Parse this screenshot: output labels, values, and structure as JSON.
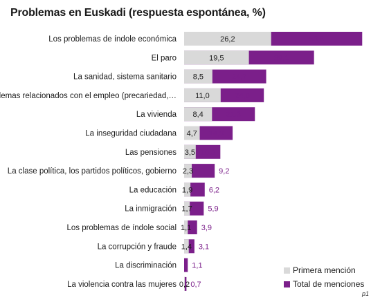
{
  "chart_data": {
    "type": "bar",
    "title": "Problemas en Euskadi (respuesta espontánea, %)",
    "categories": [
      "Los problemas de índole económica",
      "El paro",
      "La sanidad, sistema sanitario",
      "Problemas relacionados con el empleo (precariedad,…",
      "La vivienda",
      "La inseguridad ciudadana",
      "Las pensiones",
      "La clase política, los partidos políticos, gobierno",
      "La educación",
      "La inmigración",
      "Los problemas de índole social",
      "La corrupción y fraude",
      "La discriminación",
      "La violencia contra las mujeres"
    ],
    "series": [
      {
        "name": "Primera mención",
        "color": "#d9d9d9",
        "values": [
          26.2,
          19.5,
          8.5,
          11.0,
          8.4,
          4.7,
          3.5,
          2.3,
          1.9,
          1.7,
          1.1,
          1.4,
          null,
          0.2
        ],
        "labels": [
          "26,2",
          "19,5",
          "8,5",
          "11,0",
          "8,4",
          "4,7",
          "3,5",
          "2,3",
          "1,9",
          "1,7",
          "1,1",
          "1,4",
          "",
          "0,2"
        ]
      },
      {
        "name": "Total de menciones",
        "color": "#7b1f8a",
        "values": [
          53.6,
          39.1,
          24.7,
          24.0,
          21.3,
          14.6,
          10.9,
          9.2,
          6.2,
          5.9,
          3.9,
          3.1,
          1.1,
          0.7
        ],
        "labels": [
          "53,6",
          "39,1",
          "24,7",
          "24,0",
          "21,3",
          "14,6",
          "10,9",
          "9,2",
          "6,2",
          "5,9",
          "3,9",
          "3,1",
          "1,1",
          "0,7"
        ]
      }
    ],
    "legend_position": "bottom-right",
    "grid": false,
    "source_note": "p1"
  }
}
